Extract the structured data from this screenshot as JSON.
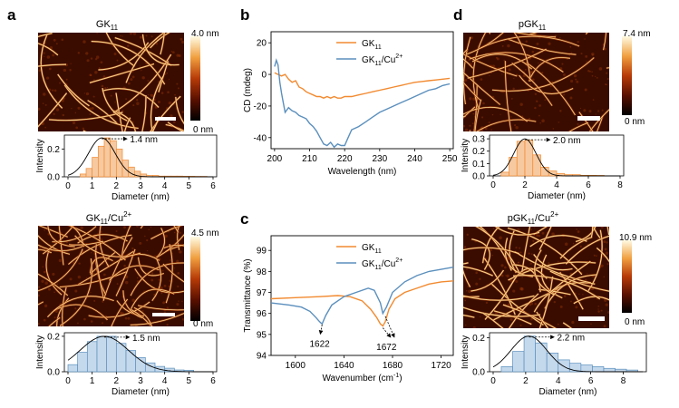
{
  "figure": {
    "panel_labels": [
      "a",
      "b",
      "c",
      "d"
    ],
    "colors": {
      "orange": "#f28a30",
      "blue": "#5b8fbd",
      "orange_fill": "#f6c9a0",
      "blue_fill": "#c5d9ec",
      "afm_dark": "#3a0c00",
      "afm_mid": "#b4410a",
      "afm_bright": "#ffe9a0"
    }
  },
  "afm_panels": [
    {
      "title": "GK",
      "sub": "11",
      "sup": "",
      "scale_max": "4.0 nm",
      "scale_min": "0 nm"
    },
    {
      "title": "GK",
      "sub": "11",
      "sup": "2+",
      "suffix": "/Cu",
      "scale_max": "4.5 nm",
      "scale_min": "0 nm"
    },
    {
      "title": "pGK",
      "sub": "11",
      "sup": "",
      "scale_max": "7.4 nm",
      "scale_min": "0 nm"
    },
    {
      "title": "pGK",
      "sub": "11",
      "sup": "2+",
      "suffix": "/Cu",
      "scale_max": "10.9 nm",
      "scale_min": "0 nm"
    }
  ],
  "histograms": [
    {
      "xlabel": "Diameter (nm)",
      "ylabel": "Intensity",
      "annotation": "1.4 nm"
    },
    {
      "xlabel": "Diameter (nm)",
      "ylabel": "Intensity",
      "annotation": "1.5 nm"
    },
    {
      "xlabel": "Diameter (nm)",
      "ylabel": "Intensity",
      "annotation": "2.0 nm"
    },
    {
      "xlabel": "Diameter (nm)",
      "ylabel": "Intensity",
      "annotation": "2.2 nm"
    }
  ],
  "chart_data": [
    {
      "id": "hist-a-top",
      "type": "bar",
      "color": "orange",
      "xlim": [
        0,
        6
      ],
      "ylim": [
        0,
        0.3
      ],
      "xticks": [
        0,
        1,
        2,
        3,
        4,
        5,
        6
      ],
      "yticks": [
        0.0,
        0.2
      ],
      "ytick_labels": [
        "0.0",
        "0.2"
      ],
      "bin_edges": [
        0.5,
        0.75,
        1.0,
        1.25,
        1.5,
        1.75,
        2.0,
        2.25,
        2.5,
        2.75,
        3.0,
        3.25,
        3.5,
        3.75,
        4.0,
        4.25,
        4.5,
        4.75,
        5.0,
        5.25,
        5.5,
        5.75
      ],
      "values": [
        0.02,
        0.06,
        0.14,
        0.22,
        0.28,
        0.26,
        0.2,
        0.12,
        0.07,
        0.04,
        0.02,
        0.01,
        0.01,
        0.005,
        0.005,
        0.005,
        0.005,
        0.004,
        0.004,
        0.003,
        0.003
      ],
      "fit": {
        "mean": 1.4,
        "sigma": 0.55,
        "amp": 0.28
      },
      "peak_label": "1.4 nm"
    },
    {
      "id": "hist-a-bottom",
      "type": "bar",
      "color": "blue",
      "xlim": [
        0,
        6
      ],
      "ylim": [
        0,
        0.22
      ],
      "xticks": [
        0,
        1,
        2,
        3,
        4,
        5,
        6
      ],
      "yticks": [
        0.0,
        0.2
      ],
      "ytick_labels": [
        "0.0",
        "0.2"
      ],
      "bin_edges": [
        0,
        0.4,
        0.8,
        1.2,
        1.6,
        2.0,
        2.4,
        2.8,
        3.2,
        3.6,
        4.0,
        4.4,
        4.8,
        5.2
      ],
      "values": [
        0.04,
        0.11,
        0.17,
        0.2,
        0.2,
        0.16,
        0.12,
        0.08,
        0.05,
        0.03,
        0.02,
        0.01,
        0.008
      ],
      "fit": {
        "mean": 1.5,
        "sigma": 1.0,
        "amp": 0.2
      },
      "peak_label": "1.5 nm"
    },
    {
      "id": "hist-d-top",
      "type": "bar",
      "color": "orange",
      "xlim": [
        0,
        8
      ],
      "ylim": [
        0,
        0.33
      ],
      "xticks": [
        0,
        2,
        4,
        6,
        8
      ],
      "yticks": [
        0.0,
        0.1,
        0.2,
        0.3
      ],
      "ytick_labels": [
        "0.0",
        "0.1",
        "0.2",
        "0.3"
      ],
      "bin_edges": [
        0.5,
        1.0,
        1.5,
        2.0,
        2.5,
        3.0,
        3.5,
        4.0,
        4.5,
        5.0,
        5.5,
        6.0,
        6.5,
        7.0
      ],
      "values": [
        0.03,
        0.15,
        0.28,
        0.29,
        0.17,
        0.07,
        0.04,
        0.02,
        0.01,
        0.01,
        0.005,
        0.005,
        0.004
      ],
      "fit": {
        "mean": 2.0,
        "sigma": 0.7,
        "amp": 0.3
      },
      "peak_label": "2.0 nm"
    },
    {
      "id": "hist-d-bottom",
      "type": "bar",
      "color": "blue",
      "xlim": [
        0,
        9.2
      ],
      "ylim": [
        0,
        0.23
      ],
      "xticks": [
        0,
        2,
        4,
        6,
        8
      ],
      "yticks": [
        0.0,
        0.2
      ],
      "ytick_labels": [
        "0.0",
        "0.2"
      ],
      "bin_edges": [
        0.5,
        1.2,
        1.9,
        2.6,
        3.3,
        4.0,
        4.7,
        5.4,
        6.1,
        6.8,
        7.5,
        8.2,
        8.9
      ],
      "values": [
        0.03,
        0.12,
        0.21,
        0.17,
        0.11,
        0.07,
        0.05,
        0.04,
        0.03,
        0.02,
        0.015,
        0.01
      ],
      "fit": {
        "mean": 2.2,
        "sigma": 1.1,
        "amp": 0.21
      },
      "peak_label": "2.2 nm"
    },
    {
      "id": "cd-spectrum",
      "type": "line",
      "xlabel": "Wavelength (nm)",
      "ylabel": "CD (mdeg)",
      "xlim": [
        199,
        251
      ],
      "ylim": [
        -47,
        27
      ],
      "xticks": [
        200,
        210,
        220,
        230,
        240,
        250
      ],
      "yticks": [
        20,
        0,
        -20,
        -40
      ],
      "legend": [
        {
          "label": "GK",
          "sub": "11",
          "sup": "",
          "suffix": ""
        },
        {
          "label": "GK",
          "sub": "11",
          "sup": "2+",
          "suffix": "/Cu"
        }
      ],
      "series": [
        {
          "name": "GK11",
          "color": "orange",
          "x": [
            200,
            201,
            202,
            203,
            204,
            205,
            206,
            207,
            208,
            209,
            210,
            211,
            212,
            213,
            214,
            215,
            216,
            217,
            218,
            219,
            220,
            222,
            224,
            226,
            228,
            230,
            232,
            234,
            236,
            238,
            240,
            242,
            244,
            246,
            248,
            250
          ],
          "y": [
            1,
            0,
            -1,
            0,
            -3,
            -5,
            -4,
            -8,
            -9,
            -11,
            -12,
            -13,
            -14,
            -14,
            -15,
            -14,
            -15,
            -14,
            -15,
            -15,
            -14,
            -14,
            -13,
            -12,
            -11,
            -10,
            -9,
            -8,
            -7,
            -6,
            -5,
            -4.5,
            -4,
            -3.5,
            -3,
            -2.5
          ]
        },
        {
          "name": "GK11/Cu2+",
          "color": "blue",
          "x": [
            200,
            200.5,
            201,
            201.5,
            202,
            202.5,
            203,
            204,
            205,
            206,
            207,
            208,
            209,
            210,
            211,
            212,
            213,
            214,
            215,
            216,
            217,
            218,
            219,
            220,
            221,
            222,
            224,
            226,
            228,
            230,
            232,
            234,
            236,
            238,
            240,
            242,
            244,
            246,
            248,
            250
          ],
          "y": [
            5,
            9,
            6,
            -5,
            -12,
            -18,
            -24,
            -21,
            -23,
            -24,
            -26,
            -27,
            -28,
            -31,
            -33,
            -36,
            -40,
            -44,
            -45,
            -43,
            -46,
            -44,
            -45,
            -45,
            -40,
            -35,
            -33,
            -30,
            -27,
            -24,
            -22,
            -20,
            -18,
            -16,
            -14,
            -12,
            -10,
            -9,
            -7,
            -6
          ]
        }
      ]
    },
    {
      "id": "ftir-spectrum",
      "type": "line",
      "xlabel": "Wavenumber (cm",
      "xlabel_sup": "-1",
      "xlabel_end": ")",
      "ylabel": "Transmittance (%)",
      "xlim": [
        1580,
        1730
      ],
      "ylim": [
        94,
        99.7
      ],
      "xticks": [
        1600,
        1640,
        1680,
        1720
      ],
      "yticks": [
        99,
        98,
        97,
        96,
        95,
        94
      ],
      "legend": [
        {
          "label": "GK",
          "sub": "11",
          "sup": "",
          "suffix": ""
        },
        {
          "label": "GK",
          "sub": "11",
          "sup": "2+",
          "suffix": "/Cu"
        }
      ],
      "annotations": [
        "1622",
        "1672"
      ],
      "series": [
        {
          "name": "GK11",
          "color": "orange",
          "x": [
            1580,
            1600,
            1620,
            1635,
            1645,
            1655,
            1662,
            1667,
            1670,
            1672,
            1674,
            1677,
            1682,
            1690,
            1700,
            1710,
            1720,
            1730
          ],
          "y": [
            96.7,
            96.75,
            96.8,
            96.85,
            96.8,
            96.6,
            96.2,
            95.8,
            95.5,
            95.4,
            95.6,
            96.2,
            96.7,
            97.0,
            97.2,
            97.4,
            97.5,
            97.55
          ]
        },
        {
          "name": "GK11/Cu2+",
          "color": "blue",
          "x": [
            1580,
            1595,
            1605,
            1612,
            1617,
            1620,
            1622,
            1625,
            1630,
            1640,
            1650,
            1660,
            1665,
            1670,
            1672,
            1675,
            1680,
            1690,
            1700,
            1710,
            1720,
            1730
          ],
          "y": [
            96.5,
            96.4,
            96.3,
            96.1,
            95.8,
            95.6,
            95.5,
            95.9,
            96.4,
            96.8,
            97.0,
            97.2,
            97.1,
            96.5,
            96.0,
            96.3,
            97.0,
            97.5,
            97.8,
            98.0,
            98.1,
            98.2
          ]
        }
      ]
    }
  ]
}
